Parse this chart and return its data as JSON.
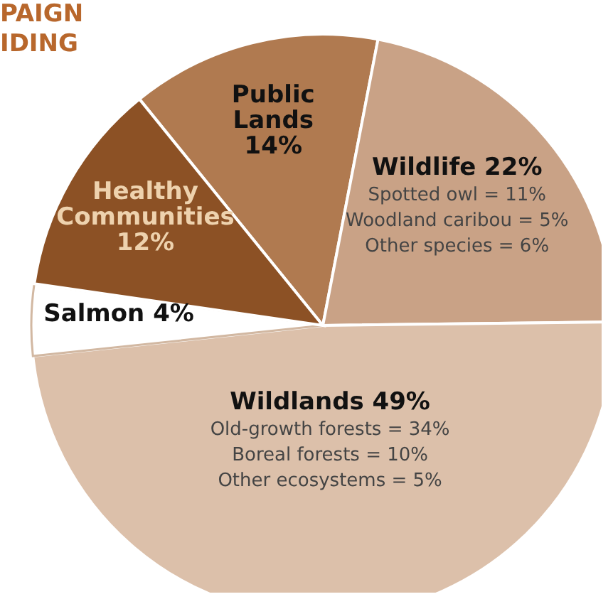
{
  "chart_data": {
    "type": "pie",
    "title": "PAIGN\nIDING",
    "categories": [
      "Public Lands",
      "Wildlife",
      "Wildlands",
      "Salmon",
      "Healthy Communities"
    ],
    "values": [
      14,
      22,
      49,
      4,
      12
    ],
    "value_labels": [
      "14%",
      "22%",
      "49%",
      "4%",
      "12%"
    ],
    "colors": [
      "#b07a50",
      "#c9a286",
      "#dcc0aa",
      "#ffffff",
      "#8c5125"
    ],
    "legend": false,
    "annotations": [
      {
        "text": "Spotted owl = 11%",
        "x": "Wildlife"
      },
      {
        "text": "Woodland caribou = 5%",
        "x": "Wildlife"
      },
      {
        "text": "Other species = 6%",
        "x": "Wildlife"
      },
      {
        "text": "Old-growth forests = 34%",
        "x": "Wildlands"
      },
      {
        "text": "Boreal forests = 10%",
        "x": "Wildlands"
      },
      {
        "text": "Other ecosystems = 5%",
        "x": "Wildlands"
      }
    ]
  }
}
